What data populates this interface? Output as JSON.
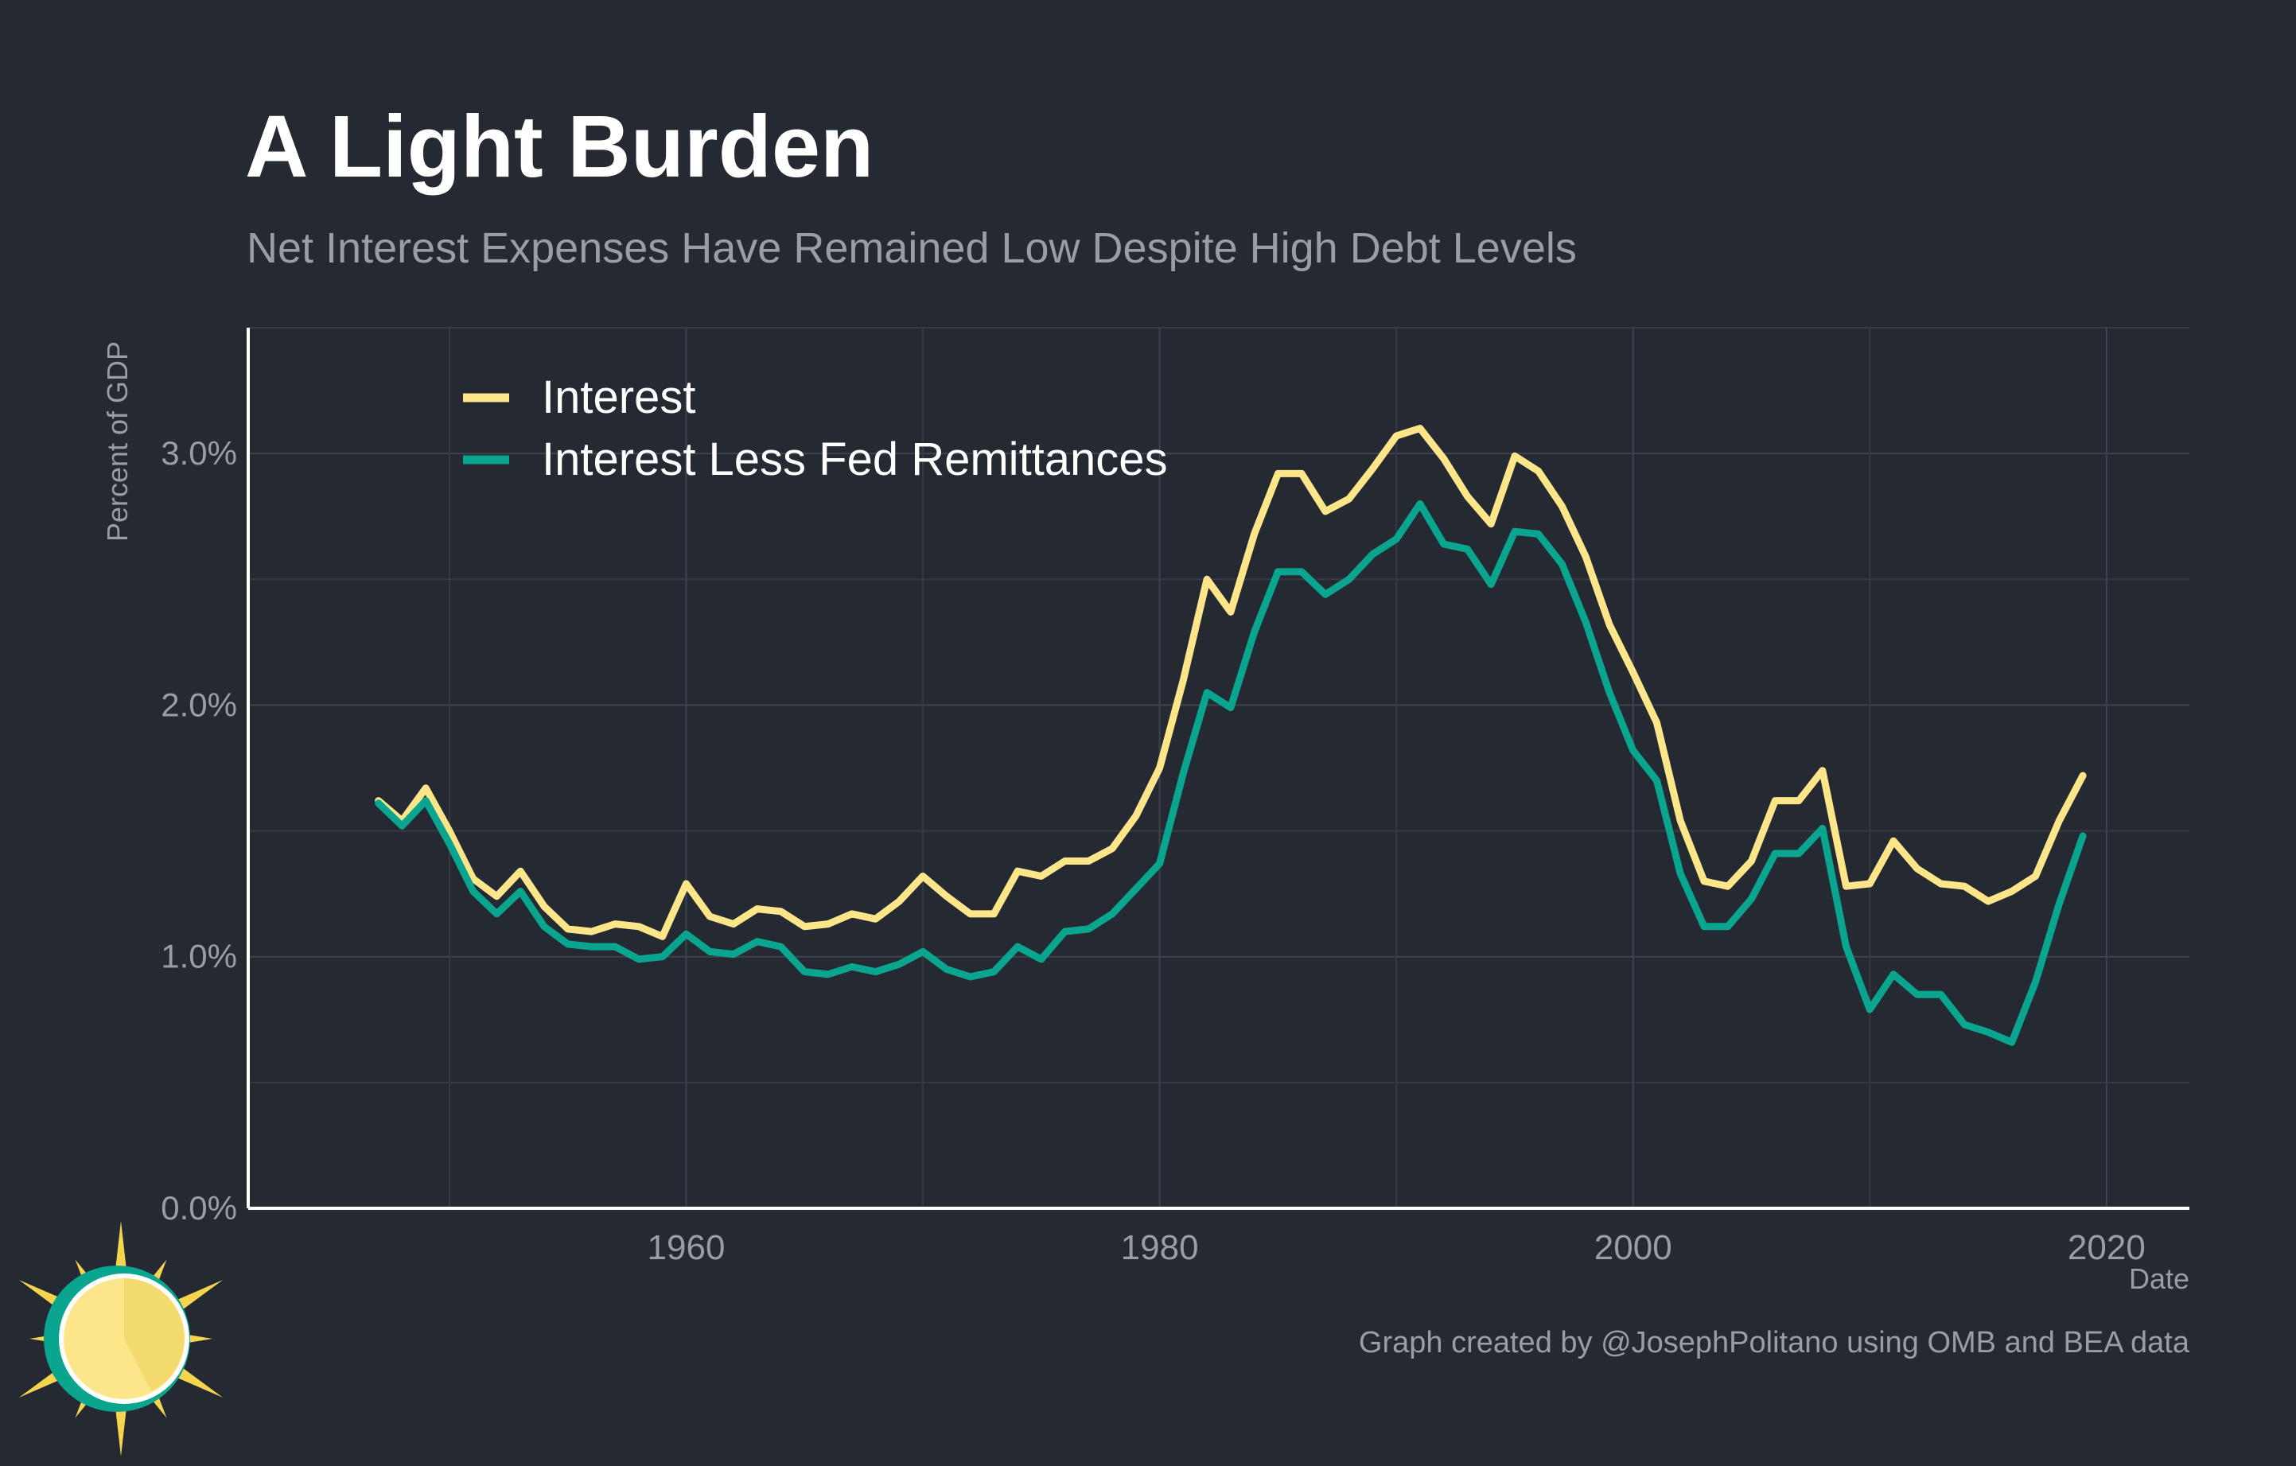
{
  "chart_data": {
    "type": "line",
    "title": "A Light Burden",
    "subtitle": "Net Interest Expenses Have Remained Low Despite High Debt Levels",
    "xlabel": "Date",
    "ylabel": "Percent of GDP",
    "caption": "Graph created by @JosephPolitano using OMB and BEA data",
    "xlim": [
      1941.5,
      2023.5
    ],
    "ylim": [
      0,
      3.5
    ],
    "x_ticks": [
      1960,
      1980,
      2000,
      2020
    ],
    "y_ticks": [
      0,
      1,
      2,
      3
    ],
    "y_tick_labels": [
      "0.0%",
      "1.0%",
      "2.0%",
      "3.0%"
    ],
    "grid": true,
    "legend_position": "top-left",
    "x": [
      1947,
      1948,
      1949,
      1950,
      1951,
      1952,
      1953,
      1954,
      1955,
      1956,
      1957,
      1958,
      1959,
      1960,
      1961,
      1962,
      1963,
      1964,
      1965,
      1966,
      1967,
      1968,
      1969,
      1970,
      1971,
      1972,
      1973,
      1974,
      1975,
      1976,
      1977,
      1978,
      1979,
      1980,
      1981,
      1982,
      1983,
      1984,
      1985,
      1986,
      1987,
      1988,
      1989,
      1990,
      1991,
      1992,
      1993,
      1994,
      1995,
      1996,
      1997,
      1998,
      1999,
      2000,
      2001,
      2002,
      2003,
      2004,
      2005,
      2006,
      2007,
      2008,
      2009,
      2010,
      2011,
      2012,
      2013,
      2014,
      2015,
      2016,
      2017,
      2018,
      2019
    ],
    "series": [
      {
        "name": "Interest",
        "color": "#fde68a",
        "values": [
          1.62,
          1.54,
          1.67,
          1.5,
          1.31,
          1.24,
          1.34,
          1.2,
          1.11,
          1.1,
          1.13,
          1.12,
          1.08,
          1.29,
          1.16,
          1.13,
          1.19,
          1.18,
          1.12,
          1.13,
          1.17,
          1.15,
          1.22,
          1.32,
          1.24,
          1.17,
          1.17,
          1.34,
          1.32,
          1.38,
          1.38,
          1.43,
          1.56,
          1.75,
          2.1,
          2.5,
          2.37,
          2.68,
          2.92,
          2.92,
          2.77,
          2.82,
          2.94,
          3.07,
          3.1,
          2.98,
          2.83,
          2.72,
          2.99,
          2.93,
          2.79,
          2.59,
          2.32,
          2.13,
          1.93,
          1.54,
          1.3,
          1.28,
          1.38,
          1.62,
          1.62,
          1.74,
          1.28,
          1.29,
          1.46,
          1.35,
          1.29,
          1.28,
          1.22,
          1.26,
          1.32,
          1.54,
          1.72
        ]
      },
      {
        "name": "Interest Less Fed Remittances",
        "color": "#0aa58f",
        "values": [
          1.61,
          1.52,
          1.62,
          1.45,
          1.26,
          1.17,
          1.26,
          1.12,
          1.05,
          1.04,
          1.04,
          0.99,
          1.0,
          1.09,
          1.02,
          1.01,
          1.06,
          1.04,
          0.94,
          0.93,
          0.96,
          0.94,
          0.97,
          1.02,
          0.95,
          0.92,
          0.94,
          1.04,
          0.99,
          1.1,
          1.11,
          1.17,
          1.27,
          1.37,
          1.73,
          2.05,
          1.99,
          2.29,
          2.53,
          2.53,
          2.44,
          2.5,
          2.6,
          2.66,
          2.8,
          2.64,
          2.62,
          2.48,
          2.69,
          2.68,
          2.56,
          2.33,
          2.05,
          1.82,
          1.7,
          1.33,
          1.12,
          1.12,
          1.23,
          1.41,
          1.41,
          1.51,
          1.04,
          0.79,
          0.93,
          0.85,
          0.85,
          0.73,
          0.7,
          0.66,
          0.9,
          1.21,
          1.48
        ]
      }
    ]
  },
  "logo": {
    "description_icon": "sun-clock-logo-icon",
    "colors": {
      "ring": "#0aa58f",
      "sun": "#fde68a",
      "rays": "#f5d44f"
    }
  }
}
